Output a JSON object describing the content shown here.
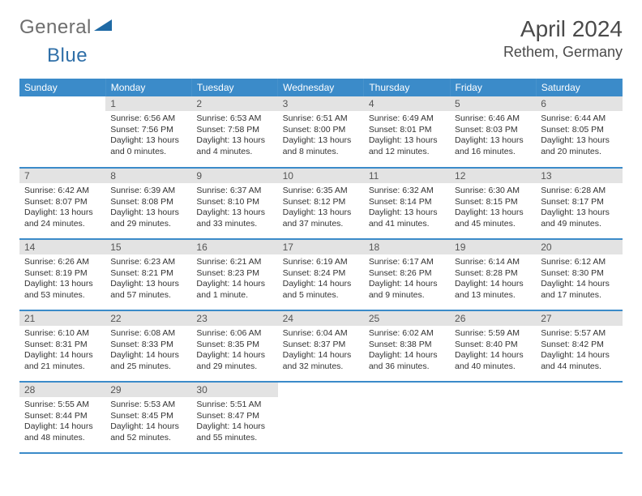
{
  "brand": {
    "part1": "General",
    "part2": "Blue"
  },
  "title": "April 2024",
  "location": "Rethem, Germany",
  "colors": {
    "header_bg": "#3b8bc9",
    "header_text": "#ffffff",
    "daynum_bg": "#e3e3e3",
    "daynum_text": "#555555",
    "body_text": "#333333",
    "border": "#3b8bc9",
    "logo_gray": "#6e6e6e",
    "logo_blue": "#2f6fa8"
  },
  "weekdays": [
    "Sunday",
    "Monday",
    "Tuesday",
    "Wednesday",
    "Thursday",
    "Friday",
    "Saturday"
  ],
  "weeks": [
    [
      {
        "n": "",
        "lines": [
          "",
          "",
          "",
          ""
        ]
      },
      {
        "n": "1",
        "lines": [
          "Sunrise: 6:56 AM",
          "Sunset: 7:56 PM",
          "Daylight: 13 hours",
          "and 0 minutes."
        ]
      },
      {
        "n": "2",
        "lines": [
          "Sunrise: 6:53 AM",
          "Sunset: 7:58 PM",
          "Daylight: 13 hours",
          "and 4 minutes."
        ]
      },
      {
        "n": "3",
        "lines": [
          "Sunrise: 6:51 AM",
          "Sunset: 8:00 PM",
          "Daylight: 13 hours",
          "and 8 minutes."
        ]
      },
      {
        "n": "4",
        "lines": [
          "Sunrise: 6:49 AM",
          "Sunset: 8:01 PM",
          "Daylight: 13 hours",
          "and 12 minutes."
        ]
      },
      {
        "n": "5",
        "lines": [
          "Sunrise: 6:46 AM",
          "Sunset: 8:03 PM",
          "Daylight: 13 hours",
          "and 16 minutes."
        ]
      },
      {
        "n": "6",
        "lines": [
          "Sunrise: 6:44 AM",
          "Sunset: 8:05 PM",
          "Daylight: 13 hours",
          "and 20 minutes."
        ]
      }
    ],
    [
      {
        "n": "7",
        "lines": [
          "Sunrise: 6:42 AM",
          "Sunset: 8:07 PM",
          "Daylight: 13 hours",
          "and 24 minutes."
        ]
      },
      {
        "n": "8",
        "lines": [
          "Sunrise: 6:39 AM",
          "Sunset: 8:08 PM",
          "Daylight: 13 hours",
          "and 29 minutes."
        ]
      },
      {
        "n": "9",
        "lines": [
          "Sunrise: 6:37 AM",
          "Sunset: 8:10 PM",
          "Daylight: 13 hours",
          "and 33 minutes."
        ]
      },
      {
        "n": "10",
        "lines": [
          "Sunrise: 6:35 AM",
          "Sunset: 8:12 PM",
          "Daylight: 13 hours",
          "and 37 minutes."
        ]
      },
      {
        "n": "11",
        "lines": [
          "Sunrise: 6:32 AM",
          "Sunset: 8:14 PM",
          "Daylight: 13 hours",
          "and 41 minutes."
        ]
      },
      {
        "n": "12",
        "lines": [
          "Sunrise: 6:30 AM",
          "Sunset: 8:15 PM",
          "Daylight: 13 hours",
          "and 45 minutes."
        ]
      },
      {
        "n": "13",
        "lines": [
          "Sunrise: 6:28 AM",
          "Sunset: 8:17 PM",
          "Daylight: 13 hours",
          "and 49 minutes."
        ]
      }
    ],
    [
      {
        "n": "14",
        "lines": [
          "Sunrise: 6:26 AM",
          "Sunset: 8:19 PM",
          "Daylight: 13 hours",
          "and 53 minutes."
        ]
      },
      {
        "n": "15",
        "lines": [
          "Sunrise: 6:23 AM",
          "Sunset: 8:21 PM",
          "Daylight: 13 hours",
          "and 57 minutes."
        ]
      },
      {
        "n": "16",
        "lines": [
          "Sunrise: 6:21 AM",
          "Sunset: 8:23 PM",
          "Daylight: 14 hours",
          "and 1 minute."
        ]
      },
      {
        "n": "17",
        "lines": [
          "Sunrise: 6:19 AM",
          "Sunset: 8:24 PM",
          "Daylight: 14 hours",
          "and 5 minutes."
        ]
      },
      {
        "n": "18",
        "lines": [
          "Sunrise: 6:17 AM",
          "Sunset: 8:26 PM",
          "Daylight: 14 hours",
          "and 9 minutes."
        ]
      },
      {
        "n": "19",
        "lines": [
          "Sunrise: 6:14 AM",
          "Sunset: 8:28 PM",
          "Daylight: 14 hours",
          "and 13 minutes."
        ]
      },
      {
        "n": "20",
        "lines": [
          "Sunrise: 6:12 AM",
          "Sunset: 8:30 PM",
          "Daylight: 14 hours",
          "and 17 minutes."
        ]
      }
    ],
    [
      {
        "n": "21",
        "lines": [
          "Sunrise: 6:10 AM",
          "Sunset: 8:31 PM",
          "Daylight: 14 hours",
          "and 21 minutes."
        ]
      },
      {
        "n": "22",
        "lines": [
          "Sunrise: 6:08 AM",
          "Sunset: 8:33 PM",
          "Daylight: 14 hours",
          "and 25 minutes."
        ]
      },
      {
        "n": "23",
        "lines": [
          "Sunrise: 6:06 AM",
          "Sunset: 8:35 PM",
          "Daylight: 14 hours",
          "and 29 minutes."
        ]
      },
      {
        "n": "24",
        "lines": [
          "Sunrise: 6:04 AM",
          "Sunset: 8:37 PM",
          "Daylight: 14 hours",
          "and 32 minutes."
        ]
      },
      {
        "n": "25",
        "lines": [
          "Sunrise: 6:02 AM",
          "Sunset: 8:38 PM",
          "Daylight: 14 hours",
          "and 36 minutes."
        ]
      },
      {
        "n": "26",
        "lines": [
          "Sunrise: 5:59 AM",
          "Sunset: 8:40 PM",
          "Daylight: 14 hours",
          "and 40 minutes."
        ]
      },
      {
        "n": "27",
        "lines": [
          "Sunrise: 5:57 AM",
          "Sunset: 8:42 PM",
          "Daylight: 14 hours",
          "and 44 minutes."
        ]
      }
    ],
    [
      {
        "n": "28",
        "lines": [
          "Sunrise: 5:55 AM",
          "Sunset: 8:44 PM",
          "Daylight: 14 hours",
          "and 48 minutes."
        ]
      },
      {
        "n": "29",
        "lines": [
          "Sunrise: 5:53 AM",
          "Sunset: 8:45 PM",
          "Daylight: 14 hours",
          "and 52 minutes."
        ]
      },
      {
        "n": "30",
        "lines": [
          "Sunrise: 5:51 AM",
          "Sunset: 8:47 PM",
          "Daylight: 14 hours",
          "and 55 minutes."
        ]
      },
      {
        "n": "",
        "lines": [
          "",
          "",
          "",
          ""
        ]
      },
      {
        "n": "",
        "lines": [
          "",
          "",
          "",
          ""
        ]
      },
      {
        "n": "",
        "lines": [
          "",
          "",
          "",
          ""
        ]
      },
      {
        "n": "",
        "lines": [
          "",
          "",
          "",
          ""
        ]
      }
    ]
  ]
}
